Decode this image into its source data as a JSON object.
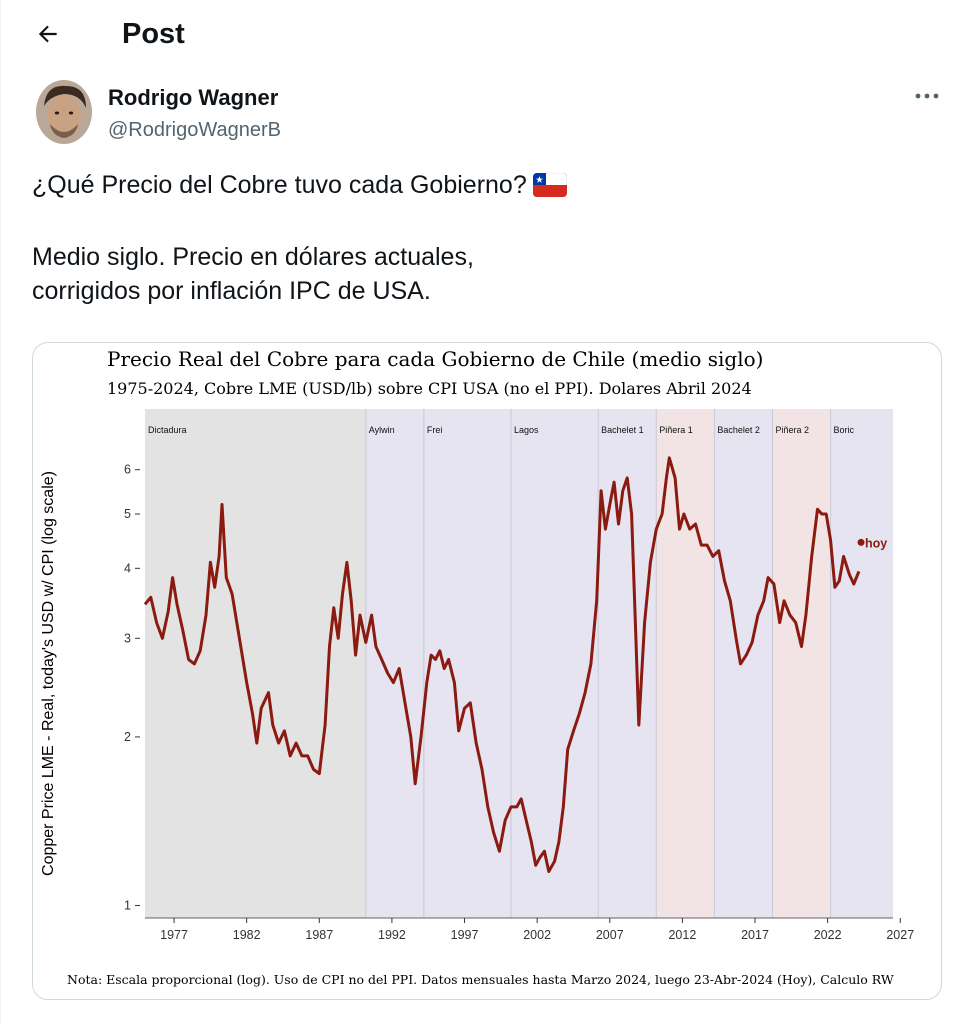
{
  "header": {
    "title": "Post"
  },
  "author": {
    "name": "Rodrigo Wagner",
    "handle": "@RodrigoWagnerB"
  },
  "post": {
    "line1": "¿Qué Precio del Cobre tuvo cada Gobierno?",
    "flag_icon": "chile-flag-emoji",
    "line2": "Medio siglo. Precio en dólares actuales,",
    "line3": "corrigidos por inflación IPC de USA."
  },
  "chart_data": {
    "type": "line",
    "title": "Precio Real del Cobre para cada Gobierno de Chile (medio siglo)",
    "subtitle": "1975-2024, Cobre LME (USD/lb) sobre CPI USA (no el PPI). Dolares Abril 2024",
    "ylabel": "Copper Price LME - Real, today's USD w/ CPI (log scale)",
    "y_scale": "log",
    "ylim": [
      0.95,
      7.7
    ],
    "xlim": [
      1975.0,
      2026.5
    ],
    "x_ticks": [
      1977,
      1982,
      1987,
      1992,
      1997,
      2002,
      2007,
      2012,
      2017,
      2022,
      2027
    ],
    "y_ticks": [
      1,
      2,
      3,
      4,
      5,
      6
    ],
    "note": "Nota: Escala proporcional (log). Uso de CPI no del PPI. Datos mensuales hasta Marzo 2024, luego 23-Abr-2024 (Hoy), Calculo RW",
    "line_color": "#8b1a10",
    "periods": [
      {
        "label": "Dictadura",
        "start": 1975.0,
        "end": 1990.2,
        "color": "#e3e3e3"
      },
      {
        "label": "Aylwin",
        "start": 1990.2,
        "end": 1994.2,
        "color": "#e5e4f0"
      },
      {
        "label": "Frei",
        "start": 1994.2,
        "end": 2000.2,
        "color": "#e5e4f0"
      },
      {
        "label": "Lagos",
        "start": 2000.2,
        "end": 2006.2,
        "color": "#e5e4f0"
      },
      {
        "label": "Bachelet 1",
        "start": 2006.2,
        "end": 2010.2,
        "color": "#e5e4f0"
      },
      {
        "label": "Piñera 1",
        "start": 2010.2,
        "end": 2014.2,
        "color": "#f2e4e4"
      },
      {
        "label": "Bachelet 2",
        "start": 2014.2,
        "end": 2018.2,
        "color": "#e5e4f0"
      },
      {
        "label": "Piñera 2",
        "start": 2018.2,
        "end": 2022.2,
        "color": "#f2e4e4"
      },
      {
        "label": "Boric",
        "start": 2022.2,
        "end": 2026.5,
        "color": "#e5e4f0"
      }
    ],
    "series": [
      {
        "values": [
          [
            1975.0,
            3.45
          ],
          [
            1975.4,
            3.55
          ],
          [
            1975.8,
            3.2
          ],
          [
            1976.2,
            3.0
          ],
          [
            1976.6,
            3.35
          ],
          [
            1976.9,
            3.85
          ],
          [
            1977.2,
            3.45
          ],
          [
            1977.6,
            3.1
          ],
          [
            1978.0,
            2.75
          ],
          [
            1978.4,
            2.7
          ],
          [
            1978.8,
            2.85
          ],
          [
            1979.2,
            3.3
          ],
          [
            1979.5,
            4.1
          ],
          [
            1979.8,
            3.7
          ],
          [
            1980.1,
            4.2
          ],
          [
            1980.3,
            5.2
          ],
          [
            1980.6,
            3.85
          ],
          [
            1981.0,
            3.6
          ],
          [
            1981.5,
            3.0
          ],
          [
            1982.0,
            2.5
          ],
          [
            1982.4,
            2.2
          ],
          [
            1982.7,
            1.95
          ],
          [
            1983.0,
            2.25
          ],
          [
            1983.5,
            2.4
          ],
          [
            1983.8,
            2.1
          ],
          [
            1984.2,
            1.95
          ],
          [
            1984.6,
            2.05
          ],
          [
            1985.0,
            1.85
          ],
          [
            1985.4,
            1.95
          ],
          [
            1985.8,
            1.85
          ],
          [
            1986.2,
            1.85
          ],
          [
            1986.6,
            1.75
          ],
          [
            1987.0,
            1.72
          ],
          [
            1987.4,
            2.1
          ],
          [
            1987.7,
            2.9
          ],
          [
            1988.0,
            3.4
          ],
          [
            1988.3,
            3.0
          ],
          [
            1988.6,
            3.6
          ],
          [
            1988.9,
            4.1
          ],
          [
            1989.2,
            3.5
          ],
          [
            1989.5,
            2.8
          ],
          [
            1989.8,
            3.3
          ],
          [
            1990.2,
            2.95
          ],
          [
            1990.6,
            3.3
          ],
          [
            1990.9,
            2.9
          ],
          [
            1991.3,
            2.75
          ],
          [
            1991.7,
            2.6
          ],
          [
            1992.1,
            2.5
          ],
          [
            1992.5,
            2.65
          ],
          [
            1992.9,
            2.3
          ],
          [
            1993.3,
            2.0
          ],
          [
            1993.6,
            1.65
          ],
          [
            1994.0,
            2.0
          ],
          [
            1994.4,
            2.5
          ],
          [
            1994.7,
            2.8
          ],
          [
            1995.0,
            2.75
          ],
          [
            1995.3,
            2.85
          ],
          [
            1995.6,
            2.65
          ],
          [
            1995.9,
            2.75
          ],
          [
            1996.3,
            2.5
          ],
          [
            1996.6,
            2.05
          ],
          [
            1997.0,
            2.25
          ],
          [
            1997.4,
            2.3
          ],
          [
            1997.8,
            1.95
          ],
          [
            1998.2,
            1.75
          ],
          [
            1998.6,
            1.5
          ],
          [
            1999.0,
            1.35
          ],
          [
            1999.4,
            1.25
          ],
          [
            1999.8,
            1.42
          ],
          [
            2000.2,
            1.5
          ],
          [
            2000.6,
            1.5
          ],
          [
            2000.9,
            1.55
          ],
          [
            2001.3,
            1.4
          ],
          [
            2001.6,
            1.3
          ],
          [
            2001.9,
            1.18
          ],
          [
            2002.2,
            1.22
          ],
          [
            2002.5,
            1.25
          ],
          [
            2002.8,
            1.15
          ],
          [
            2003.2,
            1.2
          ],
          [
            2003.5,
            1.3
          ],
          [
            2003.8,
            1.5
          ],
          [
            2004.1,
            1.9
          ],
          [
            2004.5,
            2.05
          ],
          [
            2004.9,
            2.2
          ],
          [
            2005.3,
            2.4
          ],
          [
            2005.7,
            2.7
          ],
          [
            2006.1,
            3.5
          ],
          [
            2006.4,
            5.5
          ],
          [
            2006.7,
            4.7
          ],
          [
            2007.0,
            5.2
          ],
          [
            2007.3,
            5.7
          ],
          [
            2007.6,
            4.8
          ],
          [
            2007.9,
            5.5
          ],
          [
            2008.2,
            5.8
          ],
          [
            2008.5,
            5.0
          ],
          [
            2008.8,
            3.0
          ],
          [
            2009.0,
            2.1
          ],
          [
            2009.4,
            3.2
          ],
          [
            2009.8,
            4.1
          ],
          [
            2010.2,
            4.7
          ],
          [
            2010.6,
            5.0
          ],
          [
            2010.9,
            5.8
          ],
          [
            2011.1,
            6.3
          ],
          [
            2011.5,
            5.8
          ],
          [
            2011.8,
            4.7
          ],
          [
            2012.1,
            5.0
          ],
          [
            2012.5,
            4.7
          ],
          [
            2012.9,
            4.8
          ],
          [
            2013.3,
            4.4
          ],
          [
            2013.7,
            4.4
          ],
          [
            2014.1,
            4.2
          ],
          [
            2014.5,
            4.3
          ],
          [
            2014.9,
            3.8
          ],
          [
            2015.3,
            3.5
          ],
          [
            2015.7,
            3.0
          ],
          [
            2016.0,
            2.7
          ],
          [
            2016.4,
            2.8
          ],
          [
            2016.8,
            2.95
          ],
          [
            2017.2,
            3.3
          ],
          [
            2017.6,
            3.5
          ],
          [
            2017.9,
            3.85
          ],
          [
            2018.3,
            3.75
          ],
          [
            2018.7,
            3.2
          ],
          [
            2019.0,
            3.5
          ],
          [
            2019.4,
            3.3
          ],
          [
            2019.8,
            3.2
          ],
          [
            2020.2,
            2.9
          ],
          [
            2020.5,
            3.3
          ],
          [
            2020.9,
            4.2
          ],
          [
            2021.3,
            5.1
          ],
          [
            2021.6,
            5.0
          ],
          [
            2021.9,
            5.0
          ],
          [
            2022.2,
            4.5
          ],
          [
            2022.5,
            3.7
          ],
          [
            2022.8,
            3.8
          ],
          [
            2023.1,
            4.2
          ],
          [
            2023.5,
            3.9
          ],
          [
            2023.8,
            3.75
          ],
          [
            2024.15,
            3.95
          ]
        ]
      }
    ],
    "annotation": {
      "label": "hoy",
      "x": 2024.3,
      "y": 4.45
    }
  }
}
